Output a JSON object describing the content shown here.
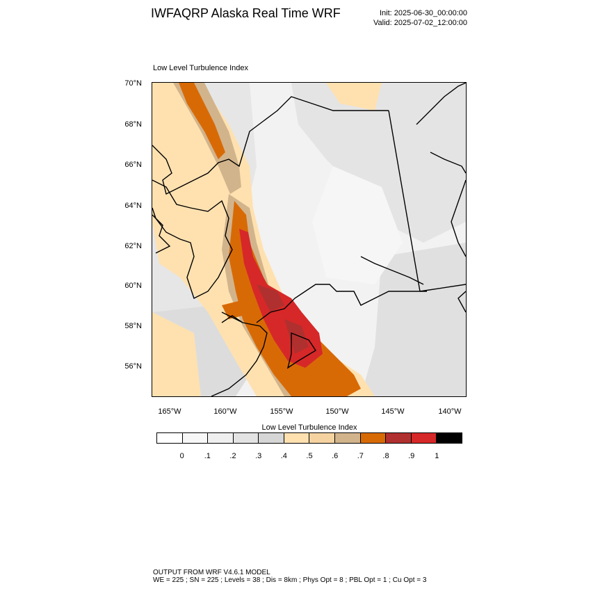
{
  "header": {
    "title": "IWFAQRP Alaska Real Time WRF",
    "init": "Init: 2025-06-30_00:00:00",
    "valid": "Valid: 2025-07-02_12:00:00"
  },
  "map": {
    "subtitle": "Low Level Turbulence Index",
    "lat_labels": [
      "70°N",
      "68°N",
      "66°N",
      "64°N",
      "62°N",
      "60°N",
      "58°N",
      "56°N"
    ],
    "lon_labels": [
      "165°W",
      "160°W",
      "155°W",
      "150°W",
      "145°W",
      "140°W"
    ]
  },
  "colorbar": {
    "title": "Low Level Turbulence Index",
    "colors": [
      "#ffffff",
      "#f7f7f7",
      "#efefef",
      "#e3e3e3",
      "#d6d6d6",
      "#ffe1b0",
      "#f5d3a1",
      "#d2b48c",
      "#d86a06",
      "#b0302f",
      "#d62828",
      "#000000"
    ],
    "labels": [
      "0",
      ".1",
      ".2",
      ".3",
      ".4",
      ".5",
      ".6",
      ".7",
      ".8",
      ".9",
      "1"
    ]
  },
  "footer": {
    "line1": "OUTPUT FROM WRF V4.6.1 MODEL",
    "line2": "WE = 225 ; SN = 225 ; Levels = 38 ; Dis = 8km ; Phys Opt = 8 ; PBL Opt = 1 ; Cu Opt = 3"
  }
}
